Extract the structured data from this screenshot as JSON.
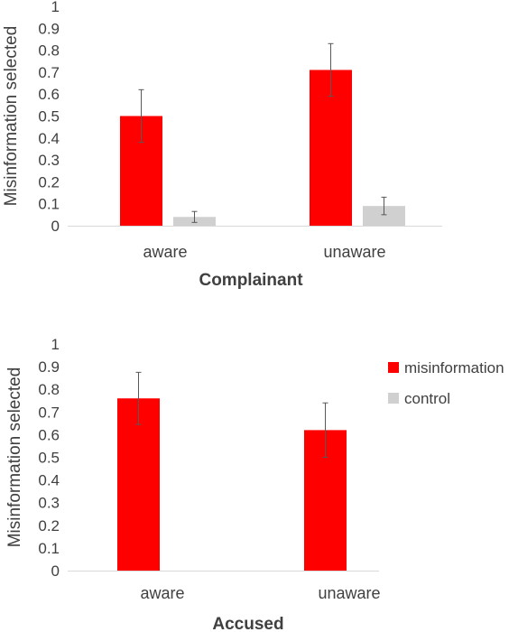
{
  "chart_data": [
    {
      "type": "bar",
      "categories": [
        "aware",
        "unaware"
      ],
      "series": [
        {
          "name": "misinformation",
          "values": [
            0.5,
            0.71
          ],
          "error": [
            0.12,
            0.12
          ]
        },
        {
          "name": "control",
          "values": [
            0.04,
            0.09
          ],
          "error": [
            0.025,
            0.04
          ]
        }
      ],
      "xlabel": "Complainant",
      "ylabel": "Misinformation selected",
      "ylim": [
        0,
        1
      ],
      "yticks": [
        "0",
        "0.1",
        "0.2",
        "0.3",
        "0.4",
        "0.5",
        "0.6",
        "0.7",
        "0.8",
        "0.9",
        "1"
      ],
      "grid": false,
      "legend": "none"
    },
    {
      "type": "bar",
      "categories": [
        "aware",
        "unaware"
      ],
      "series": [
        {
          "name": "misinformation",
          "values": [
            0.76,
            0.62
          ],
          "error": [
            0.115,
            0.12
          ]
        },
        {
          "name": "control",
          "values": [
            0,
            0
          ],
          "error": [
            0,
            0
          ]
        }
      ],
      "xlabel": "Accused",
      "ylabel": "Misinformation selected",
      "ylim": [
        0,
        1
      ],
      "yticks": [
        "0",
        "0.1",
        "0.2",
        "0.3",
        "0.4",
        "0.5",
        "0.6",
        "0.7",
        "0.8",
        "0.9",
        "1"
      ],
      "grid": false,
      "legend": "right"
    }
  ],
  "legend": {
    "items": [
      {
        "label": "misinformation",
        "color": "#ff0000"
      },
      {
        "label": "control",
        "color": "#d0d0d0"
      }
    ]
  },
  "colors": {
    "misinformation": "#ff0000",
    "control": "#d0d0d0",
    "axis": "#d9d9d9",
    "text": "#404040",
    "error": "#595959"
  }
}
